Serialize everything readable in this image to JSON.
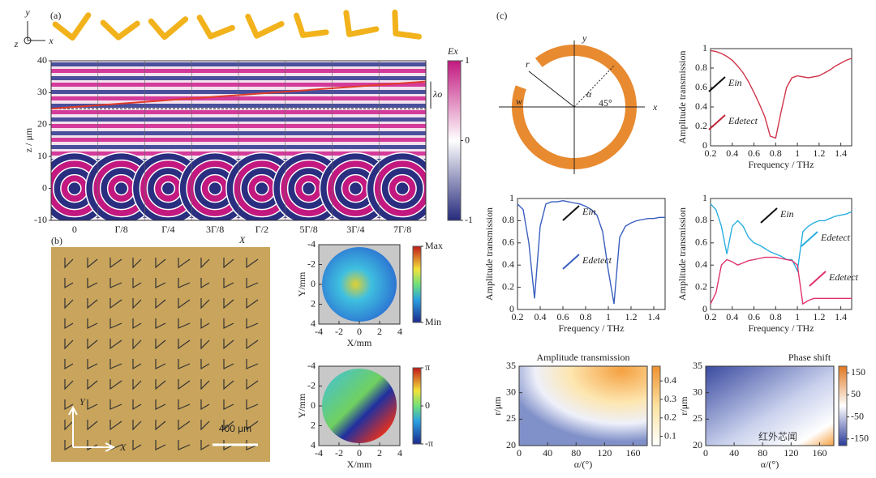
{
  "panels": [
    "(a)",
    "(b)",
    "(c)"
  ],
  "watermark": "红外芯闻",
  "chart_data": [
    {
      "type": "field",
      "categories": [
        "0",
        "Γ/8",
        "Γ/4",
        "3Γ/8",
        "Γ/2",
        "5Γ/8",
        "3Γ/4",
        "7Γ/8"
      ],
      "ylim": [
        -10,
        40
      ],
      "yticks": [
        -10,
        0,
        10,
        20,
        30,
        40
      ],
      "ylabel": "z / μm",
      "wavefront": [
        25,
        33.5
      ],
      "reference": 25,
      "annotation": "λo",
      "axis_labels": [
        "y",
        "z",
        "x"
      ],
      "colorbar": {
        "label": "Ex",
        "lim": [
          -1,
          1
        ],
        "ticks": [
          -1,
          0,
          1
        ]
      }
    },
    {
      "type": "photo",
      "labels": [
        "X",
        "Y",
        "X",
        "400 μm"
      ]
    },
    {
      "type": "map",
      "xlim": [
        -4,
        4
      ],
      "xticks": [
        -4,
        -2,
        0,
        2,
        4
      ],
      "ylim": [
        4,
        -4
      ],
      "yticks": [
        -4,
        -2,
        0,
        2,
        4
      ],
      "xlabel": "X/mm",
      "ylabel": "Y/mm",
      "colorbar": {
        "lim": [
          0,
          1
        ],
        "ticks": [
          {
            "value": 1,
            "label": "Max"
          },
          {
            "value": 0,
            "label": "Min"
          }
        ]
      }
    },
    {
      "type": "map",
      "xlim": [
        -4,
        4
      ],
      "xticks": [
        -4,
        -2,
        0,
        2,
        4
      ],
      "ylim": [
        4,
        -4
      ],
      "yticks": [
        -4,
        -2,
        0,
        2,
        4
      ],
      "xlabel": "X/mm",
      "ylabel": "Y/mm",
      "colorbar": {
        "lim": [
          -3.1416,
          3.1416
        ],
        "ticks": [
          {
            "value": 3.1416,
            "label": "π"
          },
          0,
          {
            "value": -3.1416,
            "label": "-π"
          }
        ]
      }
    },
    {
      "type": "ring",
      "labels": [
        "y",
        "x",
        "r",
        "w",
        "α",
        "45°"
      ]
    },
    {
      "type": "line",
      "xlabel": "Frequency / THz",
      "ylabel": "Amplitude  transmission",
      "xlim": [
        0.2,
        1.5
      ],
      "xticks": [
        0.2,
        0.4,
        0.6,
        0.8,
        1.0,
        1.2,
        1.4
      ],
      "ylim": [
        0,
        1
      ],
      "yticks": [
        0.0,
        0.2,
        0.4,
        0.6,
        0.8,
        1.0
      ],
      "x": [
        0.2,
        0.25,
        0.3,
        0.35,
        0.4,
        0.45,
        0.5,
        0.55,
        0.6,
        0.65,
        0.7,
        0.75,
        0.8,
        0.85,
        0.9,
        0.95,
        1.0,
        1.05,
        1.1,
        1.15,
        1.2,
        1.25,
        1.3,
        1.35,
        1.4,
        1.45,
        1.5
      ],
      "series": [
        {
          "color": "#d0344a",
          "values": [
            0.98,
            0.97,
            0.95,
            0.92,
            0.88,
            0.82,
            0.75,
            0.66,
            0.55,
            0.43,
            0.3,
            0.1,
            0.08,
            0.35,
            0.6,
            0.7,
            0.72,
            0.71,
            0.7,
            0.71,
            0.72,
            0.75,
            0.78,
            0.82,
            0.85,
            0.88,
            0.9
          ]
        }
      ],
      "annotations": [
        "Ein",
        "Edetect"
      ]
    },
    {
      "type": "line",
      "xlabel": "Frequency / THz",
      "ylabel": "Amplitude  transmission",
      "xlim": [
        0.2,
        1.5
      ],
      "xticks": [
        0.2,
        0.4,
        0.6,
        0.8,
        1.0,
        1.2,
        1.4
      ],
      "ylim": [
        0,
        1
      ],
      "yticks": [
        0.0,
        0.2,
        0.4,
        0.6,
        0.8,
        1.0
      ],
      "x": [
        0.2,
        0.25,
        0.3,
        0.35,
        0.4,
        0.45,
        0.5,
        0.55,
        0.6,
        0.65,
        0.7,
        0.75,
        0.8,
        0.85,
        0.9,
        0.95,
        1.0,
        1.05,
        1.1,
        1.15,
        1.2,
        1.25,
        1.3,
        1.35,
        1.4,
        1.45,
        1.5
      ],
      "series": [
        {
          "color": "#3b5fc0",
          "values": [
            0.95,
            0.9,
            0.6,
            0.1,
            0.75,
            0.95,
            0.97,
            0.97,
            0.98,
            0.97,
            0.96,
            0.95,
            0.93,
            0.9,
            0.85,
            0.7,
            0.35,
            0.05,
            0.65,
            0.75,
            0.78,
            0.8,
            0.81,
            0.82,
            0.82,
            0.83,
            0.83
          ]
        }
      ],
      "annotations": [
        "Ein",
        "Edetect"
      ]
    },
    {
      "type": "line",
      "xlabel": "Frequency / THz",
      "ylabel": "Amplitude  transmission",
      "xlim": [
        0.2,
        1.5
      ],
      "xticks": [
        0.2,
        0.4,
        0.6,
        0.8,
        1.0,
        1.2,
        1.4
      ],
      "ylim": [
        0,
        1
      ],
      "yticks": [
        0.0,
        0.2,
        0.4,
        0.6,
        0.8,
        1.0
      ],
      "x": [
        0.2,
        0.25,
        0.3,
        0.35,
        0.4,
        0.45,
        0.5,
        0.55,
        0.6,
        0.65,
        0.7,
        0.75,
        0.8,
        0.85,
        0.9,
        0.95,
        1.0,
        1.05,
        1.1,
        1.15,
        1.2,
        1.25,
        1.3,
        1.35,
        1.4,
        1.45,
        1.5
      ],
      "series": [
        {
          "color": "#2aaee0",
          "values": [
            0.95,
            0.9,
            0.75,
            0.5,
            0.75,
            0.8,
            0.75,
            0.65,
            0.6,
            0.58,
            0.55,
            0.52,
            0.5,
            0.48,
            0.45,
            0.45,
            0.35,
            0.7,
            0.75,
            0.78,
            0.8,
            0.8,
            0.82,
            0.84,
            0.85,
            0.86,
            0.88
          ]
        },
        {
          "color": "#e0336e",
          "values": [
            0.05,
            0.15,
            0.4,
            0.45,
            0.43,
            0.4,
            0.42,
            0.44,
            0.45,
            0.46,
            0.47,
            0.47,
            0.47,
            0.46,
            0.45,
            0.44,
            0.4,
            0.05,
            0.08,
            0.1,
            0.1,
            0.1,
            0.1,
            0.1,
            0.1,
            0.1,
            0.1
          ]
        }
      ],
      "annotations": [
        "Ein",
        "Edetect",
        "Edetect"
      ]
    },
    {
      "type": "heat",
      "title": "Amplitude transmission",
      "xlabel": "α/(°)",
      "ylabel": "r/μm",
      "xlim": [
        0,
        180
      ],
      "xticks": [
        0,
        40,
        80,
        120,
        160
      ],
      "ylim": [
        20,
        35
      ],
      "yticks": [
        20,
        25,
        30,
        35
      ],
      "colorbar": {
        "lim": [
          0.05,
          0.48
        ],
        "ticks": [
          0.1,
          0.2,
          0.3,
          0.4
        ]
      }
    },
    {
      "type": "heat",
      "title": "Phase shift",
      "xlabel": "α/(°)",
      "ylabel": "r/μm",
      "xlim": [
        0,
        180
      ],
      "xticks": [
        0,
        40,
        80,
        120,
        160
      ],
      "ylim": [
        20,
        35
      ],
      "yticks": [
        20,
        25,
        30,
        35
      ],
      "colorbar": {
        "lim": [
          -180,
          180
        ],
        "ticks": [
          -150,
          -50,
          50,
          150
        ]
      }
    }
  ]
}
